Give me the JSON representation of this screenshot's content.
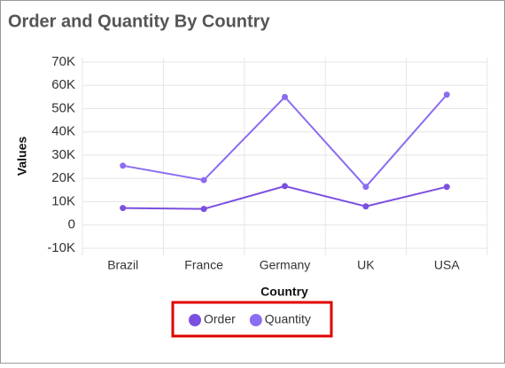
{
  "chart_data": {
    "type": "line",
    "title": "Order and Quantity By Country",
    "x_label": "Country",
    "y_label": "Values",
    "categories": [
      "Brazil",
      "France",
      "Germany",
      "UK",
      "USA"
    ],
    "series": [
      {
        "name": "Order",
        "color": "#7b4fe0",
        "values": [
          7300,
          6900,
          16700,
          8000,
          16400
        ]
      },
      {
        "name": "Quantity",
        "color": "#8c6cf2",
        "values": [
          25500,
          19300,
          55000,
          16400,
          56000
        ]
      }
    ],
    "ylim": [
      -10000,
      70000
    ],
    "yticks": [
      {
        "value": -10000,
        "label": "-10K"
      },
      0,
      {
        "value": 10000,
        "label": "10K"
      },
      {
        "value": 20000,
        "label": "20K"
      },
      {
        "value": 30000,
        "label": "30K"
      },
      {
        "value": 40000,
        "label": "40K"
      },
      {
        "value": 50000,
        "label": "50K"
      },
      {
        "value": 60000,
        "label": "60K"
      },
      {
        "value": 70000,
        "label": "70K"
      }
    ],
    "grid": true
  }
}
